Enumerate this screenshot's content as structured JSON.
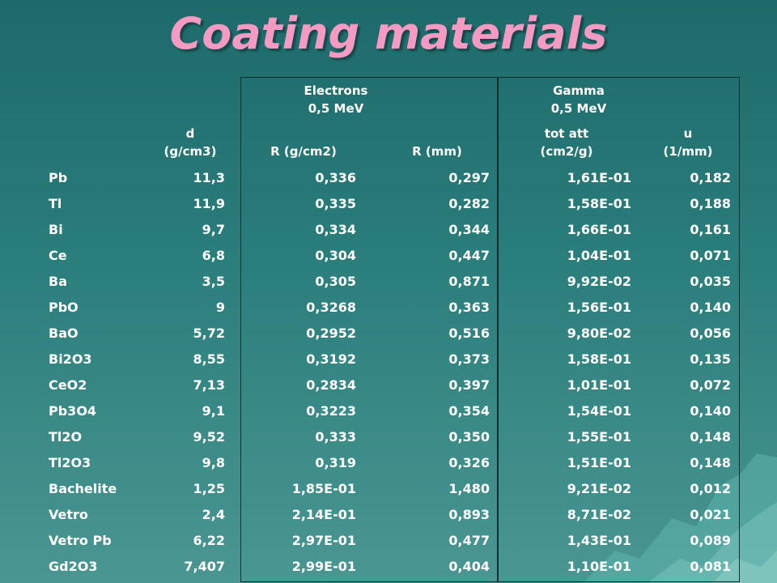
{
  "title": "Coating materials",
  "colors": {
    "title": "#f59ac3",
    "text": "#ffffff",
    "background": "#2a7e7c"
  },
  "groups": {
    "electrons": {
      "label": "Electrons",
      "energy": "0,5 MeV"
    },
    "gamma": {
      "label": "Gamma",
      "energy": "0,5 MeV"
    }
  },
  "columns": {
    "d": {
      "line1": "d",
      "line2": "(g/cm3)"
    },
    "r_g": {
      "line1": "R (g/cm2)"
    },
    "r_mm": {
      "line1": "R (mm)"
    },
    "tot_att": {
      "line1": "tot att",
      "line2": "(cm2/g)"
    },
    "u": {
      "line1": "u",
      "line2": "(1/mm)"
    }
  },
  "rows": [
    [
      "Pb",
      "11,3",
      "0,336",
      "0,297",
      "1,61E-01",
      "0,182"
    ],
    [
      "Tl",
      "11,9",
      "0,335",
      "0,282",
      "1,58E-01",
      "0,188"
    ],
    [
      "Bi",
      "9,7",
      "0,334",
      "0,344",
      "1,66E-01",
      "0,161"
    ],
    [
      "Ce",
      "6,8",
      "0,304",
      "0,447",
      "1,04E-01",
      "0,071"
    ],
    [
      "Ba",
      "3,5",
      "0,305",
      "0,871",
      "9,92E-02",
      "0,035"
    ],
    [
      "PbO",
      "9",
      "0,3268",
      "0,363",
      "1,56E-01",
      "0,140"
    ],
    [
      "BaO",
      "5,72",
      "0,2952",
      "0,516",
      "9,80E-02",
      "0,056"
    ],
    [
      "Bi2O3",
      "8,55",
      "0,3192",
      "0,373",
      "1,58E-01",
      "0,135"
    ],
    [
      "CeO2",
      "7,13",
      "0,2834",
      "0,397",
      "1,01E-01",
      "0,072"
    ],
    [
      "Pb3O4",
      "9,1",
      "0,3223",
      "0,354",
      "1,54E-01",
      "0,140"
    ],
    [
      "Tl2O",
      "9,52",
      "0,333",
      "0,350",
      "1,55E-01",
      "0,148"
    ],
    [
      "Tl2O3",
      "9,8",
      "0,319",
      "0,326",
      "1,51E-01",
      "0,148"
    ],
    [
      "Bachelite",
      "1,25",
      "1,85E-01",
      "1,480",
      "9,21E-02",
      "0,012"
    ],
    [
      "Vetro",
      "2,4",
      "2,14E-01",
      "0,893",
      "8,71E-02",
      "0,021"
    ],
    [
      "Vetro Pb",
      "6,22",
      "2,97E-01",
      "0,477",
      "1,43E-01",
      "0,089"
    ],
    [
      "Gd2O3",
      "7,407",
      "2,99E-01",
      "0,404",
      "1,10E-01",
      "0,081"
    ]
  ]
}
